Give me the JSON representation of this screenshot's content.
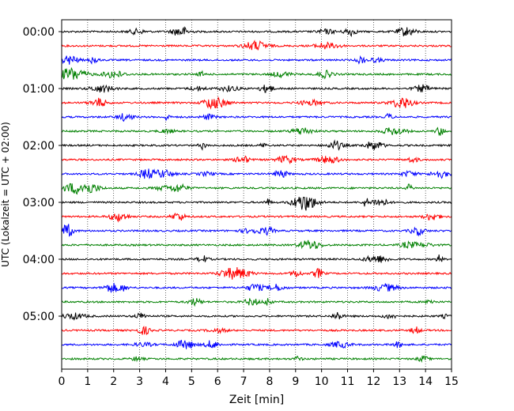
{
  "chart_data": {
    "type": "line",
    "subtype": "seismic-helicorder",
    "xlabel": "Zeit  [min]",
    "ylabel": "UTC (Lokalzeit = UTC + 02:00)",
    "xlim": [
      0,
      15
    ],
    "x_ticks": [
      "0",
      "1",
      "2",
      "3",
      "4",
      "5",
      "6",
      "7",
      "8",
      "9",
      "10",
      "11",
      "12",
      "13",
      "14",
      "15"
    ],
    "y_ticks": [
      "00:00",
      "01:00",
      "02:00",
      "03:00",
      "04:00",
      "05:00"
    ],
    "grid": {
      "x": true,
      "y": false,
      "style": "dotted"
    },
    "trace_colors": [
      "#000000",
      "#ff0000",
      "#0000ff",
      "#008000"
    ],
    "rows": [
      {
        "start": "00:00",
        "color": "#000000"
      },
      {
        "start": "00:15",
        "color": "#ff0000"
      },
      {
        "start": "00:30",
        "color": "#0000ff"
      },
      {
        "start": "00:45",
        "color": "#008000"
      },
      {
        "start": "01:00",
        "color": "#000000"
      },
      {
        "start": "01:15",
        "color": "#ff0000"
      },
      {
        "start": "01:30",
        "color": "#0000ff"
      },
      {
        "start": "01:45",
        "color": "#008000"
      },
      {
        "start": "02:00",
        "color": "#000000"
      },
      {
        "start": "02:15",
        "color": "#ff0000"
      },
      {
        "start": "02:30",
        "color": "#0000ff"
      },
      {
        "start": "02:45",
        "color": "#008000"
      },
      {
        "start": "03:00",
        "color": "#000000"
      },
      {
        "start": "03:15",
        "color": "#ff0000"
      },
      {
        "start": "03:30",
        "color": "#0000ff"
      },
      {
        "start": "03:45",
        "color": "#008000"
      },
      {
        "start": "04:00",
        "color": "#000000"
      },
      {
        "start": "04:15",
        "color": "#ff0000"
      },
      {
        "start": "04:30",
        "color": "#0000ff"
      },
      {
        "start": "04:45",
        "color": "#008000"
      },
      {
        "start": "05:00",
        "color": "#000000"
      },
      {
        "start": "05:15",
        "color": "#ff0000"
      },
      {
        "start": "05:30",
        "color": "#0000ff"
      },
      {
        "start": "05:45",
        "color": "#008000"
      }
    ]
  }
}
